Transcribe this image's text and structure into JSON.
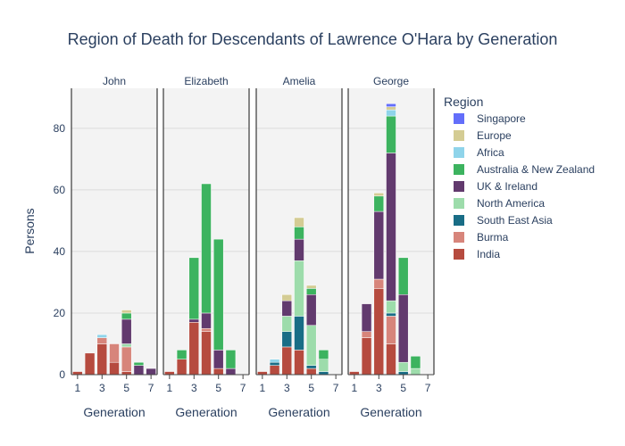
{
  "chart_data": {
    "type": "bar",
    "barmode": "stack",
    "title": "Region of Death for Descendants of Lawrence O'Hara by Generation",
    "xlabel": "Generation",
    "ylabel": "Persons",
    "ylim": [
      0,
      93
    ],
    "y_ticks": [
      0,
      20,
      40,
      60,
      80
    ],
    "x_ticks": [
      1,
      3,
      5,
      7
    ],
    "xlim": [
      0.5,
      7.5
    ],
    "grid": true,
    "legend_title": "Region",
    "legend_position": "right",
    "stack_order": [
      "India",
      "Burma",
      "South East Asia",
      "North America",
      "UK & Ireland",
      "Australia & New Zealand",
      "Africa",
      "Europe",
      "Singapore"
    ],
    "legend_order": [
      "Singapore",
      "Europe",
      "Africa",
      "Australia & New Zealand",
      "UK & Ireland",
      "North America",
      "South East Asia",
      "Burma",
      "India"
    ],
    "colors": {
      "Singapore": "#636efa",
      "Europe": "#d4cc94",
      "Africa": "#8fd4ea",
      "Australia & New Zealand": "#3cb35f",
      "UK & Ireland": "#623a6e",
      "North America": "#9ddcab",
      "South East Asia": "#196d86",
      "Burma": "#d7857b",
      "India": "#b64b3f"
    },
    "facets": [
      {
        "name": "John",
        "bars": [
          {
            "generation": 1,
            "counts": {
              "India": 1
            }
          },
          {
            "generation": 2,
            "counts": {
              "India": 7
            }
          },
          {
            "generation": 3,
            "counts": {
              "India": 10,
              "Burma": 2,
              "Africa": 1
            }
          },
          {
            "generation": 4,
            "counts": {
              "India": 4,
              "Burma": 6
            }
          },
          {
            "generation": 5,
            "counts": {
              "India": 1,
              "Burma": 8,
              "North America": 1,
              "UK & Ireland": 8,
              "Australia & New Zealand": 2,
              "Europe": 1
            }
          },
          {
            "generation": 6,
            "counts": {
              "UK & Ireland": 3,
              "Australia & New Zealand": 1
            }
          },
          {
            "generation": 7,
            "counts": {
              "UK & Ireland": 2
            }
          }
        ]
      },
      {
        "name": "Elizabeth",
        "bars": [
          {
            "generation": 1,
            "counts": {
              "India": 1
            }
          },
          {
            "generation": 2,
            "counts": {
              "India": 5,
              "Australia & New Zealand": 3
            }
          },
          {
            "generation": 3,
            "counts": {
              "India": 17,
              "UK & Ireland": 1,
              "Australia & New Zealand": 20
            }
          },
          {
            "generation": 4,
            "counts": {
              "India": 14,
              "Burma": 1,
              "UK & Ireland": 5,
              "Australia & New Zealand": 42
            }
          },
          {
            "generation": 5,
            "counts": {
              "India": 2,
              "UK & Ireland": 6,
              "Australia & New Zealand": 36
            }
          },
          {
            "generation": 6,
            "counts": {
              "UK & Ireland": 2,
              "Australia & New Zealand": 6
            }
          }
        ]
      },
      {
        "name": "Amelia",
        "bars": [
          {
            "generation": 1,
            "counts": {
              "India": 1
            }
          },
          {
            "generation": 2,
            "counts": {
              "India": 3,
              "South East Asia": 1,
              "Africa": 1
            }
          },
          {
            "generation": 3,
            "counts": {
              "India": 9,
              "South East Asia": 5,
              "North America": 5,
              "UK & Ireland": 5,
              "Europe": 2
            }
          },
          {
            "generation": 4,
            "counts": {
              "India": 8,
              "South East Asia": 11,
              "North America": 18,
              "UK & Ireland": 7,
              "Australia & New Zealand": 4,
              "Europe": 3
            }
          },
          {
            "generation": 5,
            "counts": {
              "India": 2,
              "South East Asia": 1,
              "North America": 13,
              "UK & Ireland": 10,
              "Australia & New Zealand": 2,
              "Europe": 1
            }
          },
          {
            "generation": 6,
            "counts": {
              "North America": 4,
              "South East Asia": 1,
              "Australia & New Zealand": 3
            }
          }
        ]
      },
      {
        "name": "George",
        "bars": [
          {
            "generation": 1,
            "counts": {
              "India": 1
            }
          },
          {
            "generation": 2,
            "counts": {
              "India": 12,
              "Burma": 2,
              "UK & Ireland": 9
            }
          },
          {
            "generation": 3,
            "counts": {
              "India": 28,
              "Burma": 3,
              "UK & Ireland": 22,
              "Australia & New Zealand": 5,
              "Europe": 1
            }
          },
          {
            "generation": 4,
            "counts": {
              "India": 10,
              "Burma": 9,
              "South East Asia": 1,
              "North America": 4,
              "UK & Ireland": 48,
              "Australia & New Zealand": 12,
              "Africa": 2,
              "Europe": 1,
              "Singapore": 1
            }
          },
          {
            "generation": 5,
            "counts": {
              "South East Asia": 1,
              "North America": 3,
              "UK & Ireland": 22,
              "Australia & New Zealand": 12
            }
          },
          {
            "generation": 6,
            "counts": {
              "North America": 2,
              "Australia & New Zealand": 4
            }
          }
        ]
      }
    ]
  }
}
